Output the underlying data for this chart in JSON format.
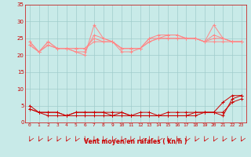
{
  "x": [
    0,
    1,
    2,
    3,
    4,
    5,
    6,
    7,
    8,
    9,
    10,
    11,
    12,
    13,
    14,
    15,
    16,
    17,
    18,
    19,
    20,
    21,
    22,
    23
  ],
  "upper_s1": [
    24,
    21,
    24,
    22,
    22,
    21,
    20,
    29,
    25,
    24,
    21,
    21,
    22,
    25,
    25,
    26,
    26,
    25,
    25,
    24,
    24,
    24,
    24,
    24
  ],
  "upper_s2": [
    24,
    21,
    24,
    22,
    22,
    21,
    21,
    26,
    25,
    24,
    22,
    22,
    22,
    25,
    26,
    26,
    26,
    25,
    25,
    24,
    29,
    25,
    24,
    24
  ],
  "upper_s3": [
    23,
    21,
    23,
    22,
    22,
    22,
    22,
    25,
    24,
    24,
    22,
    22,
    22,
    24,
    25,
    25,
    25,
    25,
    25,
    24,
    26,
    25,
    24,
    24
  ],
  "upper_s4": [
    23,
    21,
    23,
    22,
    22,
    22,
    22,
    24,
    24,
    24,
    22,
    22,
    22,
    24,
    25,
    25,
    25,
    25,
    25,
    24,
    25,
    25,
    24,
    24
  ],
  "lower_s1": [
    5,
    3,
    3,
    3,
    2,
    3,
    3,
    3,
    3,
    3,
    3,
    2,
    3,
    3,
    2,
    3,
    3,
    3,
    3,
    3,
    3,
    6,
    8,
    8
  ],
  "lower_s2": [
    4,
    3,
    3,
    3,
    2,
    3,
    3,
    3,
    3,
    2,
    3,
    2,
    2,
    2,
    2,
    2,
    2,
    2,
    2,
    3,
    3,
    2,
    7,
    8
  ],
  "lower_s3": [
    4,
    3,
    2,
    2,
    2,
    2,
    2,
    2,
    2,
    2,
    2,
    2,
    2,
    2,
    2,
    2,
    2,
    2,
    3,
    3,
    3,
    3,
    6,
    7
  ],
  "background": "#c8eae8",
  "grid_color": "#a0cccc",
  "upper_color": "#ff8888",
  "lower_color": "#cc0000",
  "arrow_color": "#cc0000",
  "xlabel": "Vent moyen/en rafales ( kn/h )",
  "ylim": [
    0,
    35
  ],
  "xlim": [
    -0.5,
    23.5
  ],
  "yticks": [
    0,
    5,
    10,
    15,
    20,
    25,
    30,
    35
  ]
}
